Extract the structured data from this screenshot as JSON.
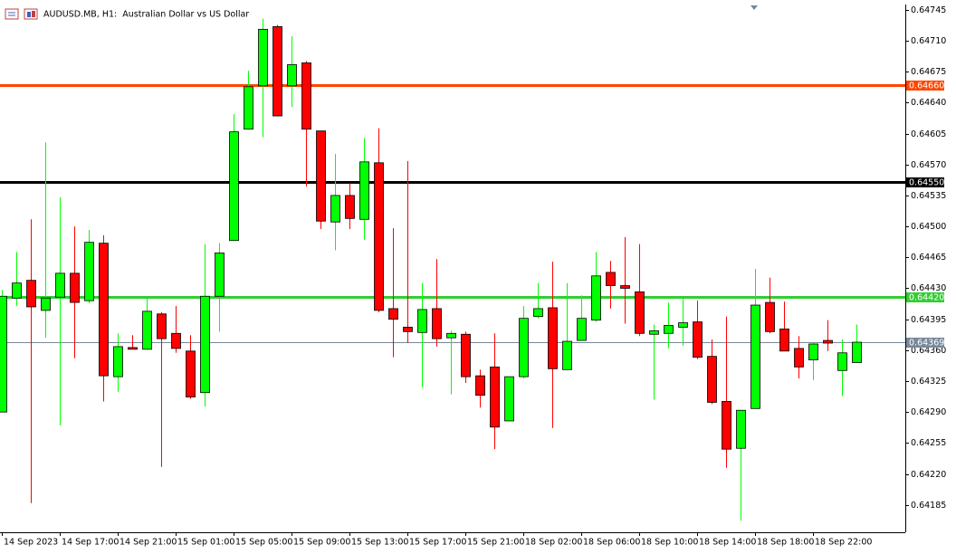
{
  "chart_data": {
    "type": "candlestick",
    "title": "AUDUSD.MB, H1:  Australian Dollar vs US Dollar",
    "categories": [
      "14 Sep 2023",
      null,
      null,
      null,
      "14 Sep 17:00",
      null,
      null,
      null,
      "14 Sep 21:00",
      null,
      null,
      null,
      "15 Sep 01:00",
      null,
      null,
      null,
      "15 Sep 05:00",
      null,
      null,
      null,
      "15 Sep 09:00",
      null,
      null,
      null,
      "15 Sep 13:00",
      null,
      null,
      null,
      "15 Sep 17:00",
      null,
      null,
      null,
      "15 Sep 21:00",
      null,
      null,
      null,
      "18 Sep 02:00",
      null,
      null,
      null,
      "18 Sep 06:00",
      null,
      null,
      null,
      "18 Sep 10:00",
      null,
      null,
      null,
      "18 Sep 14:00",
      null,
      null,
      null,
      "18 Sep 18:00",
      null,
      null,
      null,
      "18 Sep 22:00",
      null,
      null,
      null
    ],
    "open": [
      0.6429,
      0.64419,
      0.64439,
      0.64405,
      0.6442,
      0.64447,
      0.64416,
      0.64481,
      0.6433,
      0.64363,
      0.64361,
      0.64401,
      0.64379,
      0.64359,
      0.64312,
      0.64421,
      0.64484,
      0.6461,
      0.64659,
      0.64726,
      0.64659,
      0.64685,
      0.64608,
      0.64505,
      0.64535,
      0.64508,
      0.64572,
      0.64407,
      0.64386,
      0.6438,
      0.64407,
      0.64374,
      0.64378,
      0.64331,
      0.64341,
      0.6428,
      0.6433,
      0.64398,
      0.64408,
      0.64338,
      0.64371,
      0.64394,
      0.64448,
      0.64433,
      0.64426,
      0.64378,
      0.64379,
      0.64386,
      0.64392,
      0.64353,
      0.64302,
      0.64249,
      0.64294,
      0.64414,
      0.64384,
      0.64362,
      0.64349,
      0.64371,
      0.64337,
      0.64346
    ],
    "high": [
      0.64428,
      0.64471,
      0.64508,
      0.64595,
      0.64533,
      0.645,
      0.64496,
      0.6449,
      0.64379,
      0.64377,
      0.6442,
      0.64403,
      0.6441,
      0.64377,
      0.6448,
      0.64481,
      0.64627,
      0.64676,
      0.64735,
      0.64728,
      0.64715,
      0.64687,
      0.64608,
      0.64582,
      0.64549,
      0.646,
      0.64611,
      0.64498,
      0.64574,
      0.64436,
      0.64463,
      0.64382,
      0.64381,
      0.64338,
      0.64379,
      0.6433,
      0.6441,
      0.64436,
      0.6446,
      0.64436,
      0.64422,
      0.64471,
      0.64461,
      0.64488,
      0.6448,
      0.64389,
      0.64414,
      0.64418,
      0.64416,
      0.64372,
      0.64398,
      0.64292,
      0.64452,
      0.64442,
      0.64415,
      0.64376,
      0.64369,
      0.64394,
      0.64372,
      0.64389
    ],
    "low": [
      0.6429,
      0.6441,
      0.64187,
      0.64374,
      0.64275,
      0.64351,
      0.64413,
      0.64302,
      0.64313,
      0.64361,
      0.64361,
      0.64228,
      0.64357,
      0.64305,
      0.64296,
      0.64381,
      0.64484,
      0.6461,
      0.64601,
      0.64625,
      0.64635,
      0.64545,
      0.64497,
      0.64473,
      0.64497,
      0.64485,
      0.64403,
      0.64352,
      0.64368,
      0.64318,
      0.64364,
      0.6431,
      0.64323,
      0.64295,
      0.64248,
      0.6428,
      0.64328,
      0.64396,
      0.64272,
      0.64338,
      0.64371,
      0.64392,
      0.64407,
      0.6439,
      0.64376,
      0.64304,
      0.64362,
      0.64365,
      0.6435,
      0.64299,
      0.64227,
      0.64167,
      0.64294,
      0.64379,
      0.64359,
      0.64328,
      0.64326,
      0.64359,
      0.64308,
      0.64346
    ],
    "close": [
      0.64421,
      0.64436,
      0.64409,
      0.64419,
      0.64447,
      0.64414,
      0.64482,
      0.64331,
      0.64364,
      0.64361,
      0.64404,
      0.64373,
      0.64362,
      0.64307,
      0.64421,
      0.6447,
      0.64607,
      0.64658,
      0.64723,
      0.64625,
      0.64683,
      0.6461,
      0.64506,
      0.64535,
      0.64509,
      0.64573,
      0.64405,
      0.64395,
      0.64381,
      0.64406,
      0.64373,
      0.64379,
      0.6433,
      0.64309,
      0.64273,
      0.6433,
      0.64396,
      0.64407,
      0.64339,
      0.6437,
      0.64396,
      0.64444,
      0.64433,
      0.6443,
      0.64379,
      0.64382,
      0.64388,
      0.64391,
      0.64352,
      0.64301,
      0.64248,
      0.64292,
      0.64411,
      0.64381,
      0.64359,
      0.64341,
      0.64367,
      0.64368,
      0.64357,
      0.64369
    ],
    "up_color": "#00ff00",
    "down_color": "#ff0000",
    "ylim": [
      0.64154,
      0.64751
    ],
    "yticks": [
      0.64185,
      {
        "value": 0.6422,
        "label": "0.64220"
      },
      0.64255,
      {
        "value": 0.6429,
        "label": "0.64290"
      },
      0.64325,
      {
        "value": 0.6436,
        "label": "0.64360"
      },
      0.64395,
      {
        "value": 0.6443,
        "label": "0.64430"
      },
      0.64465,
      {
        "value": 0.645,
        "label": "0.64500"
      },
      0.64535,
      {
        "value": 0.6457,
        "label": "0.64570"
      },
      0.64605,
      {
        "value": 0.6464,
        "label": "0.64640"
      },
      0.64675,
      {
        "value": 0.6471,
        "label": "0.64710"
      },
      0.64745
    ],
    "price_lines": [
      {
        "value": 0.6466,
        "label": "0.64660",
        "color": "#ff4500"
      },
      {
        "value": 0.6455,
        "label": "0.64550",
        "color": "#000000"
      },
      {
        "value": 0.6442,
        "label": "0.64420",
        "color": "#32cd32"
      },
      {
        "value": 0.64369,
        "label": "0.64369",
        "color": "#778899"
      }
    ]
  }
}
